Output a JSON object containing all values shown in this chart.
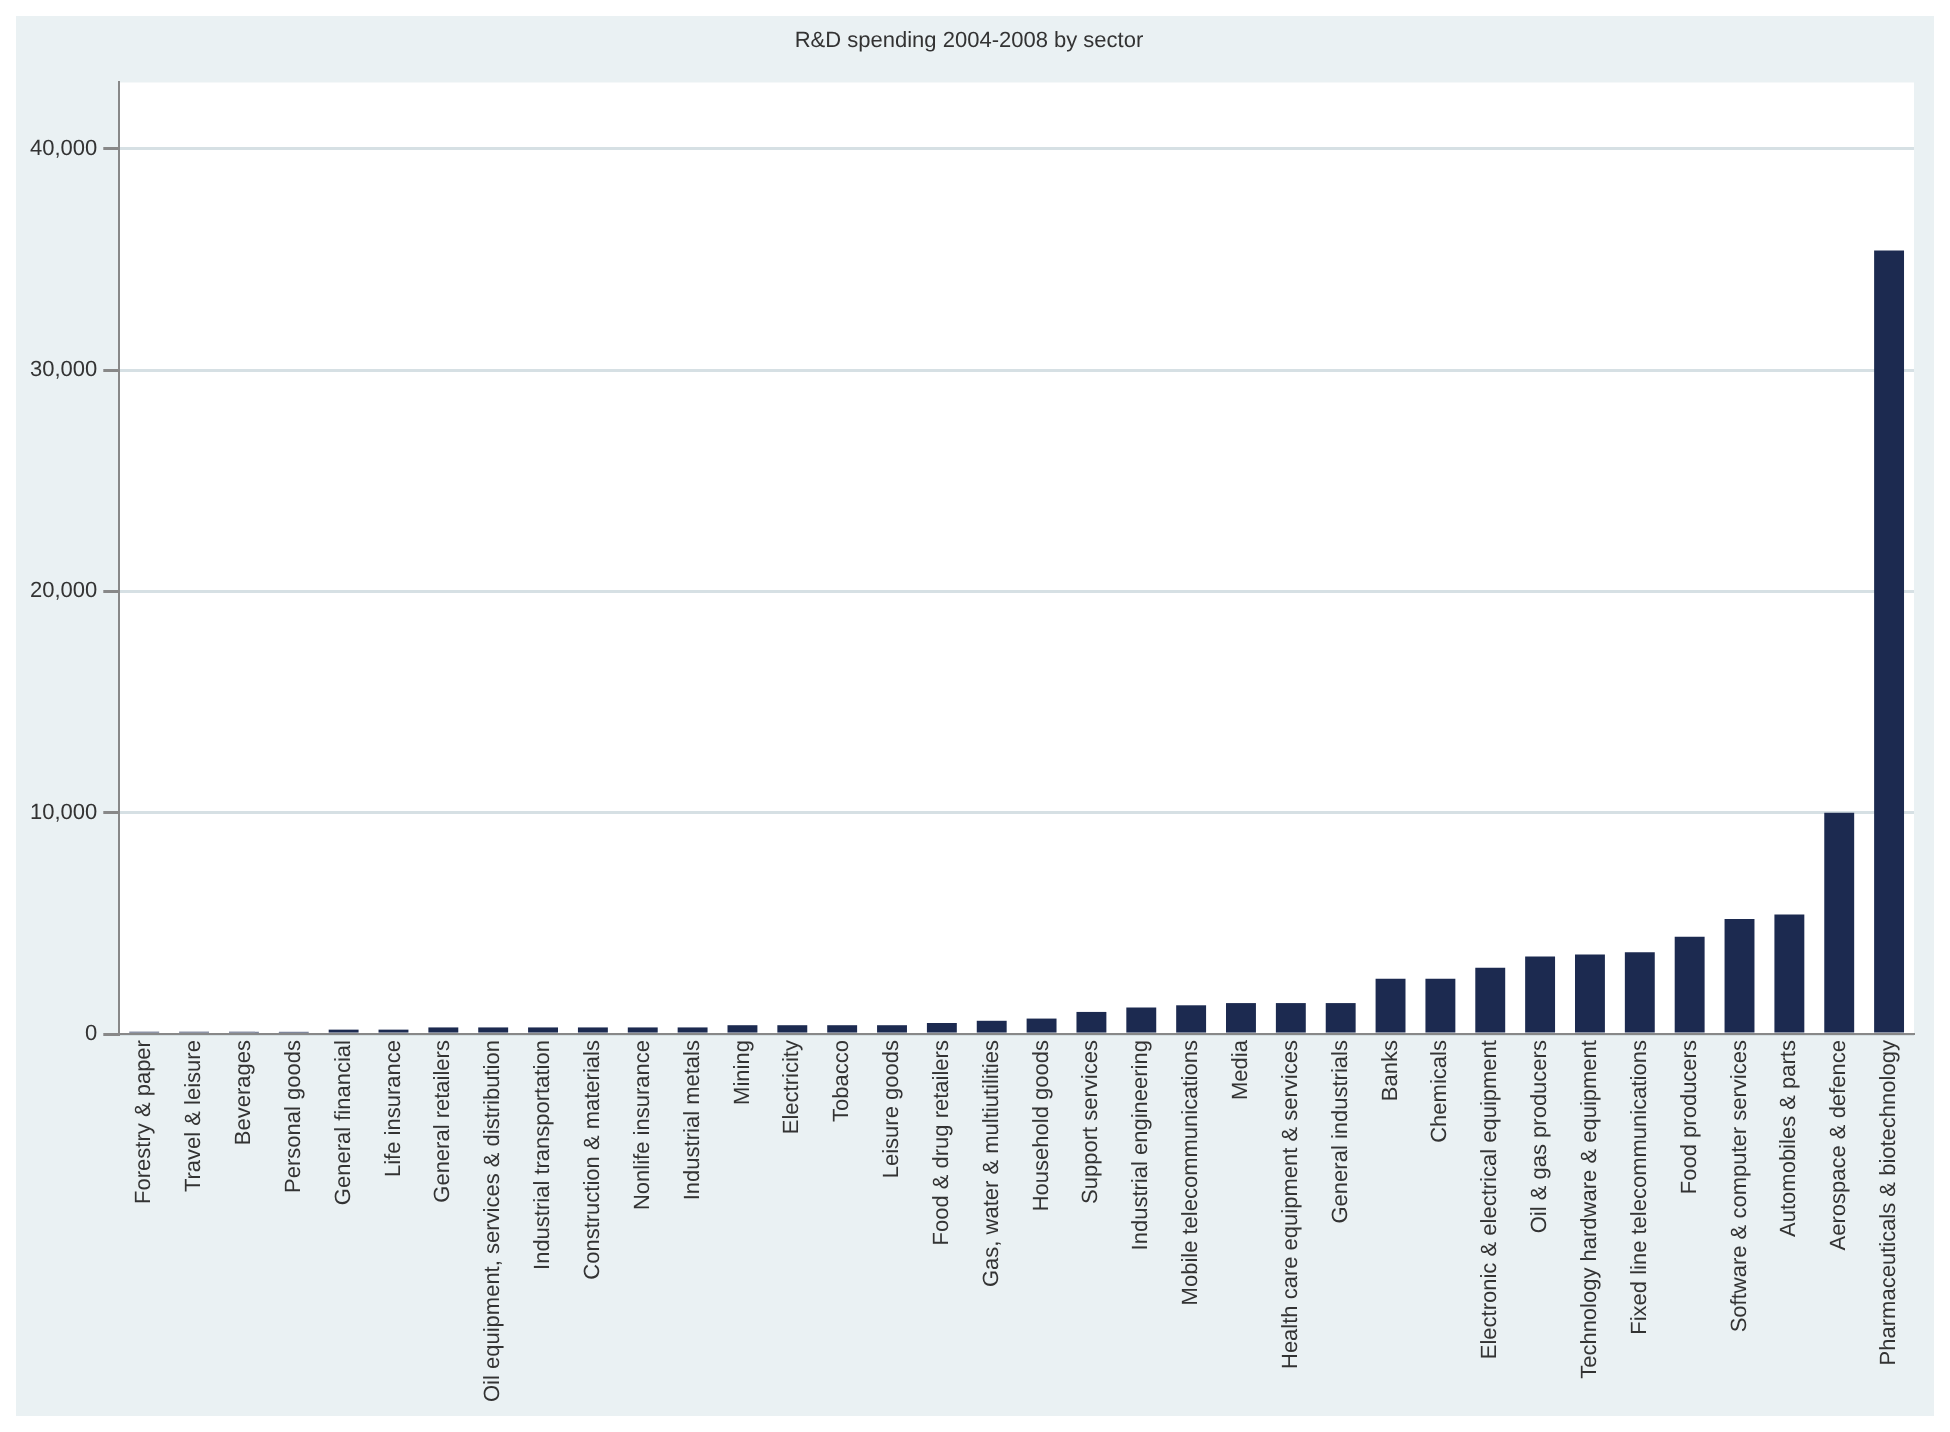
{
  "chart_data": {
    "type": "bar",
    "title": "R&D spending 2004-2008 by sector",
    "categories": [
      "Forestry & paper",
      "Travel & leisure",
      "Beverages",
      "Personal goods",
      "General financial",
      "Life insurance",
      "General retailers",
      "Oil equipment, services & distribution",
      "Industrial transportation",
      "Construction & materials",
      "Nonlife insurance",
      "Industrial metals",
      "Mining",
      "Electricity",
      "Tobacco",
      "Leisure goods",
      "Food & drug retailers",
      "Gas, water & multiutilities",
      "Household goods",
      "Support services",
      "Industrial engineering",
      "Mobile telecommunications",
      "Media",
      "Health care equipment & services",
      "General industrials",
      "Banks",
      "Chemicals",
      "Electronic & electrical equipment",
      "Oil & gas producers",
      "Technology hardware & equipment",
      "Fixed line telecommunications",
      "Food producers",
      "Software & computer services",
      "Automobiles & parts",
      "Aerospace & defence",
      "Pharmaceuticals & biotechnology"
    ],
    "values": [
      100,
      100,
      100,
      100,
      200,
      200,
      300,
      300,
      300,
      300,
      300,
      300,
      400,
      400,
      400,
      400,
      500,
      600,
      700,
      1000,
      1200,
      1300,
      1400,
      1400,
      1400,
      2500,
      2500,
      3000,
      3500,
      3600,
      3700,
      4400,
      5200,
      5400,
      10000,
      35400
    ],
    "color": "#1c2a50",
    "ylim": [
      0,
      43000
    ],
    "yticks": [
      {
        "value": 0,
        "label": "0"
      },
      {
        "value": 10000,
        "label": "10,000"
      },
      {
        "value": 20000,
        "label": "20,000"
      },
      {
        "value": 30000,
        "label": "30,000"
      },
      {
        "value": 40000,
        "label": "40,000"
      }
    ],
    "grid": "y"
  }
}
